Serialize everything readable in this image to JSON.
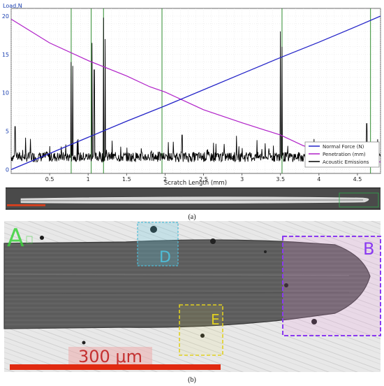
{
  "chart_data": {
    "type": "line",
    "ylabel": "Load,N",
    "xlabel": "Scratch Length (mm)",
    "xlim": [
      0,
      4.8
    ],
    "ylim": [
      -0.5,
      21
    ],
    "xticks": [
      0.5,
      1,
      1.5,
      2,
      2.5,
      3,
      3.5,
      4,
      4.5
    ],
    "yticks": [
      0,
      5,
      10,
      15,
      20
    ],
    "grid": true,
    "legend_position": "bottom-right",
    "series": [
      {
        "name": "Normal Force (N)",
        "color": "#2424c8",
        "x": [
          0,
          0.5,
          1,
          1.5,
          2,
          2.5,
          3,
          3.5,
          4,
          4.5,
          4.8
        ],
        "y": [
          0,
          2.1,
          4.2,
          6.3,
          8.3,
          10.4,
          12.5,
          14.6,
          16.6,
          18.7,
          20
        ]
      },
      {
        "name": "Penetration (mm)",
        "color": "#b020c8",
        "x": [
          0,
          0.5,
          1,
          1.5,
          1.8,
          2,
          2.5,
          3,
          3.5,
          3.8,
          4.2,
          4.7,
          4.8
        ],
        "y": [
          19.6,
          16.5,
          14.2,
          12.2,
          10.8,
          10.1,
          7.8,
          6.1,
          4.5,
          3.1,
          2.0,
          1.0,
          1.0
        ]
      },
      {
        "name": "Acoustic Emissions",
        "color": "#000000",
        "x": [
          0.05,
          0.25,
          0.78,
          0.8,
          1.05,
          1.08,
          1.2,
          1.22,
          2.22,
          3.5,
          3.52,
          4.62
        ],
        "y": [
          5.6,
          4.0,
          14.0,
          13.5,
          16.5,
          13.0,
          19.8,
          17.0,
          4.5,
          18.0,
          16.0,
          6.0
        ]
      }
    ],
    "vertical_lines": [
      0.78,
      1.04,
      1.2,
      1.96,
      3.52,
      4.67
    ]
  },
  "panel_labels": {
    "a": "(a)",
    "b": "(b)"
  },
  "micrograph": {
    "region_labels": [
      "A",
      "B",
      "D",
      "E"
    ],
    "scale_bar_text": "300 μm"
  }
}
